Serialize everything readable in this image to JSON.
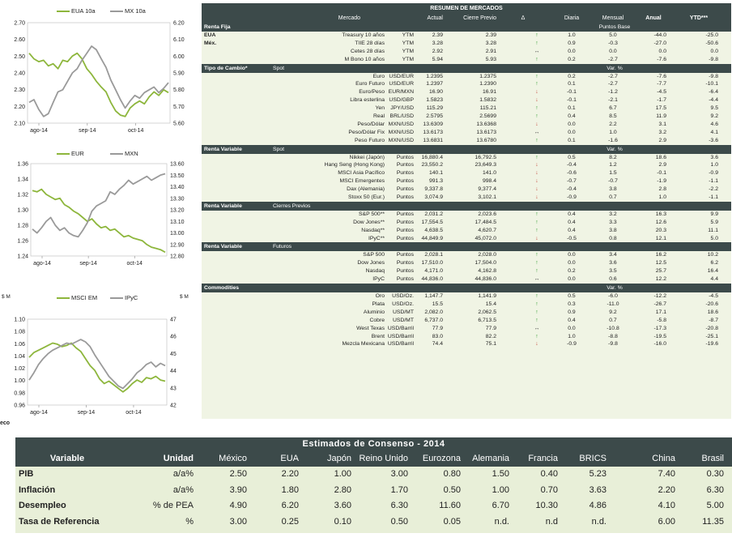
{
  "charts": [
    {
      "legend": [
        "EUA 10a",
        "MX 10a"
      ],
      "left_ticks": [
        "2.70",
        "2.60",
        "2.50",
        "2.40",
        "2.30",
        "2.20",
        "2.10"
      ],
      "right_ticks": [
        "6.20",
        "6.10",
        "6.00",
        "5.90",
        "5.80",
        "5.70",
        "5.60"
      ],
      "x_ticks": [
        "ago-14",
        "sep-14",
        "oct-14"
      ],
      "colors": {
        "series1": "#8db63c",
        "series2": "#9a9a9a"
      }
    },
    {
      "legend": [
        "EUR",
        "MXN"
      ],
      "left_ticks": [
        "1.36",
        "1.34",
        "1.32",
        "1.30",
        "1.28",
        "1.26",
        "1.24"
      ],
      "right_ticks": [
        "13.60",
        "13.50",
        "13.40",
        "13.30",
        "13.20",
        "13.10",
        "13.00",
        "12.90",
        "12.80"
      ],
      "x_ticks": [
        "ago-14",
        "sep-14",
        "oct-14"
      ],
      "colors": {
        "series1": "#8db63c",
        "series2": "#9a9a9a"
      }
    },
    {
      "legend": [
        "MSCI EM",
        "IPyC"
      ],
      "left_unit": "$ M",
      "right_unit": "$ M",
      "left_ticks": [
        "1.10",
        "1.08",
        "1.06",
        "1.04",
        "1.02",
        "1.00",
        "0.98",
        "0.96"
      ],
      "right_ticks": [
        "47",
        "46",
        "45",
        "44",
        "43",
        "42"
      ],
      "x_ticks": [
        "ago-14",
        "sep-14",
        "oct-14"
      ],
      "colors": {
        "series1": "#8db63c",
        "series2": "#9a9a9a"
      }
    }
  ],
  "eco_label": "eco",
  "market": {
    "title": "RESUMEN DE MERCADOS",
    "headers": {
      "mercado": "Mercado",
      "actual": "Actual",
      "cierre": "Cierre Previo",
      "delta": "Δ",
      "diaria": "Diaria",
      "mensual": "Mensual",
      "anual": "Anual",
      "ytd": "YTD***"
    },
    "sections": [
      {
        "label": "Renta Fija",
        "sub": "",
        "unit": "Puntos Base",
        "rows": [
          {
            "region": "EUA",
            "name": "Treasury 10 años",
            "type": "YTM",
            "actual": "2.39",
            "prev": "2.39",
            "dir": "up",
            "d": "1.0",
            "m": "5.0",
            "a": "-44.0",
            "y": "-25.0"
          },
          {
            "region": "Méx.",
            "name": "TIIE 28 días",
            "type": "YTM",
            "actual": "3.28",
            "prev": "3.28",
            "dir": "up",
            "d": "0.9",
            "m": "-0.3",
            "a": "-27.0",
            "y": "-50.6"
          },
          {
            "region": "",
            "name": "Cetes 28 días",
            "type": "YTM",
            "actual": "2.92",
            "prev": "2.91",
            "dir": "eq",
            "d": "0.0",
            "m": "0.0",
            "a": "0.0",
            "y": "0.0"
          },
          {
            "region": "",
            "name": "M Bono 10 años",
            "type": "YTM",
            "actual": "5.94",
            "prev": "5.93",
            "dir": "up",
            "d": "0.2",
            "m": "-2.7",
            "a": "-7.6",
            "y": "-9.8"
          }
        ]
      },
      {
        "label": "Tipo de Cambio*",
        "sub": "Spot",
        "unit": "Var. %",
        "rows": [
          {
            "region": "",
            "name": "Euro",
            "type": "USD/EUR",
            "actual": "1.2395",
            "prev": "1.2375",
            "dir": "up",
            "d": "0.2",
            "m": "-2.7",
            "a": "-7.6",
            "y": "-9.8"
          },
          {
            "region": "",
            "name": "Euro Futuro",
            "type": "USD/EUR",
            "actual": "1.2397",
            "prev": "1.2390",
            "dir": "up",
            "d": "0.1",
            "m": "-2.7",
            "a": "-7.7",
            "y": "-10.1"
          },
          {
            "region": "",
            "name": "Euro/Peso",
            "type": "EUR/MXN",
            "actual": "16.90",
            "prev": "16.91",
            "dir": "down",
            "d": "-0.1",
            "m": "-1.2",
            "a": "-4.5",
            "y": "-6.4"
          },
          {
            "region": "",
            "name": "Libra esterlina",
            "type": "USD/GBP",
            "actual": "1.5823",
            "prev": "1.5832",
            "dir": "down",
            "d": "-0.1",
            "m": "-2.1",
            "a": "-1.7",
            "y": "-4.4"
          },
          {
            "region": "",
            "name": "Yen",
            "type": "JPY/USD",
            "actual": "115.29",
            "prev": "115.21",
            "dir": "up",
            "d": "0.1",
            "m": "6.7",
            "a": "17.5",
            "y": "9.5"
          },
          {
            "region": "",
            "name": "Real",
            "type": "BRL/USD",
            "actual": "2.5795",
            "prev": "2.5699",
            "dir": "up",
            "d": "0.4",
            "m": "8.5",
            "a": "11.9",
            "y": "9.2"
          },
          {
            "region": "",
            "name": "Peso/Dólar",
            "type": "MXN/USD",
            "actual": "13.6309",
            "prev": "13.6368",
            "dir": "down",
            "d": "0.0",
            "m": "2.2",
            "a": "3.1",
            "y": "4.6"
          },
          {
            "region": "",
            "name": "Peso/Dólar Fix",
            "type": "MXN/USD",
            "actual": "13.6173",
            "prev": "13.6173",
            "dir": "eq",
            "d": "0.0",
            "m": "1.0",
            "a": "3.2",
            "y": "4.1"
          },
          {
            "region": "",
            "name": "Peso Futuro",
            "type": "MXN/USD",
            "actual": "13.6831",
            "prev": "13.6780",
            "dir": "up",
            "d": "0.1",
            "m": "-1.6",
            "a": "2.9",
            "y": "-3.6"
          }
        ]
      },
      {
        "label": "Renta Variable",
        "sub": "Spot",
        "unit": "Var. %",
        "rows": [
          {
            "region": "",
            "name": "Nikkei (Japón)",
            "type": "Puntos",
            "actual": "16,880.4",
            "prev": "16,792.5",
            "dir": "up",
            "d": "0.5",
            "m": "8.2",
            "a": "18.6",
            "y": "3.6"
          },
          {
            "region": "",
            "name": "Hang Seng (Hong Kong)",
            "type": "Puntos",
            "actual": "23,550.2",
            "prev": "23,649.3",
            "dir": "down",
            "d": "-0.4",
            "m": "1.2",
            "a": "2.9",
            "y": "1.0"
          },
          {
            "region": "",
            "name": "MSCI Asia Pacífico",
            "type": "Puntos",
            "actual": "140.1",
            "prev": "141.0",
            "dir": "down",
            "d": "-0.6",
            "m": "1.5",
            "a": "-0.1",
            "y": "-0.9"
          },
          {
            "region": "",
            "name": "MSCI Emergentes",
            "type": "Puntos",
            "actual": "991.3",
            "prev": "998.4",
            "dir": "down",
            "d": "-0.7",
            "m": "-0.7",
            "a": "-1.9",
            "y": "-1.1"
          },
          {
            "region": "",
            "name": "Dax (Alemania)",
            "type": "Puntos",
            "actual": "9,337.8",
            "prev": "9,377.4",
            "dir": "down",
            "d": "-0.4",
            "m": "3.8",
            "a": "2.8",
            "y": "-2.2"
          },
          {
            "region": "",
            "name": "Stoxx 50 (Eur.)",
            "type": "Puntos",
            "actual": "3,074.9",
            "prev": "3,102.1",
            "dir": "down",
            "d": "-0.9",
            "m": "0.7",
            "a": "1.0",
            "y": "-1.1"
          }
        ]
      },
      {
        "label": "Renta Variable",
        "sub": "Cierres Previos",
        "unit": "",
        "rows": [
          {
            "region": "",
            "name": "S&P 500**",
            "type": "Puntos",
            "actual": "2,031.2",
            "prev": "2,023.6",
            "dir": "up",
            "d": "0.4",
            "m": "3.2",
            "a": "16.3",
            "y": "9.9"
          },
          {
            "region": "",
            "name": "Dow Jones**",
            "type": "Puntos",
            "actual": "17,554.5",
            "prev": "17,484.5",
            "dir": "up",
            "d": "0.4",
            "m": "3.3",
            "a": "12.6",
            "y": "5.9"
          },
          {
            "region": "",
            "name": "Nasdaq**",
            "type": "Puntos",
            "actual": "4,638.5",
            "prev": "4,620.7",
            "dir": "up",
            "d": "0.4",
            "m": "3.8",
            "a": "20.3",
            "y": "11.1"
          },
          {
            "region": "",
            "name": "IPyC**",
            "type": "Puntos",
            "actual": "44,849.9",
            "prev": "45,072.0",
            "dir": "down",
            "d": "-0.5",
            "m": "0.8",
            "a": "12.1",
            "y": "5.0"
          }
        ]
      },
      {
        "label": "Renta Variable",
        "sub": "Futuros",
        "unit": "",
        "rows": [
          {
            "region": "",
            "name": "S&P 500",
            "type": "Puntos",
            "actual": "2,028.1",
            "prev": "2,028.0",
            "dir": "up",
            "d": "0.0",
            "m": "3.4",
            "a": "16.2",
            "y": "10.2"
          },
          {
            "region": "",
            "name": "Dow Jones",
            "type": "Puntos",
            "actual": "17,510.0",
            "prev": "17,504.0",
            "dir": "up",
            "d": "0.0",
            "m": "3.6",
            "a": "12.5",
            "y": "6.2"
          },
          {
            "region": "",
            "name": "Nasdaq",
            "type": "Puntos",
            "actual": "4,171.0",
            "prev": "4,162.8",
            "dir": "up",
            "d": "0.2",
            "m": "3.5",
            "a": "25.7",
            "y": "16.4"
          },
          {
            "region": "",
            "name": "IPyC",
            "type": "Puntos",
            "actual": "44,836.0",
            "prev": "44,836.0",
            "dir": "eq",
            "d": "0.0",
            "m": "0.6",
            "a": "12.2",
            "y": "4.4"
          }
        ]
      },
      {
        "label": "Commodities",
        "sub": "",
        "unit": "Var. %",
        "rows": [
          {
            "region": "",
            "name": "Oro",
            "type": "USD/Oz.",
            "actual": "1,147.7",
            "prev": "1,141.9",
            "dir": "up",
            "d": "0.5",
            "m": "-6.0",
            "a": "-12.2",
            "y": "-4.5"
          },
          {
            "region": "",
            "name": "Plata",
            "type": "USD/Oz.",
            "actual": "15.5",
            "prev": "15.4",
            "dir": "up",
            "d": "0.3",
            "m": "-11.0",
            "a": "-26.7",
            "y": "-20.6"
          },
          {
            "region": "",
            "name": "Aluminio",
            "type": "USD/MT",
            "actual": "2,082.0",
            "prev": "2,062.5",
            "dir": "up",
            "d": "0.9",
            "m": "9.2",
            "a": "17.1",
            "y": "18.6"
          },
          {
            "region": "",
            "name": "Cobre",
            "type": "USD/MT",
            "actual": "6,737.0",
            "prev": "6,713.5",
            "dir": "up",
            "d": "0.4",
            "m": "0.7",
            "a": "-5.8",
            "y": "-8.7"
          },
          {
            "region": "",
            "name": "West Texas",
            "type": "USD/Barril",
            "actual": "77.9",
            "prev": "77.9",
            "dir": "eq",
            "d": "0.0",
            "m": "-10.8",
            "a": "-17.3",
            "y": "-20.8"
          },
          {
            "region": "",
            "name": "Brent",
            "type": "USD/Barril",
            "actual": "83.0",
            "prev": "82.2",
            "dir": "up",
            "d": "1.0",
            "m": "-8.8",
            "a": "-19.5",
            "y": "-25.1"
          },
          {
            "region": "",
            "name": "Mezcla Mexicana",
            "type": "USD/Barril",
            "actual": "74.4",
            "prev": "75.1",
            "dir": "down",
            "d": "-0.9",
            "m": "-9.8",
            "a": "-16.0",
            "y": "-19.6"
          }
        ]
      }
    ]
  },
  "consensus": {
    "title": "Estimados de Consenso - 2014",
    "headers": [
      "Variable",
      "Unidad",
      "México",
      "EUA",
      "Japón",
      "Reino Unido",
      "Eurozona",
      "Alemania",
      "Francia",
      "BRICS",
      "China",
      "Brasil"
    ],
    "rows": [
      [
        "PIB",
        "a/a%",
        "2.50",
        "2.20",
        "1.00",
        "3.00",
        "0.80",
        "1.50",
        "0.40",
        "5.23",
        "7.40",
        "0.30"
      ],
      [
        "Inflación",
        "a/a%",
        "3.90",
        "1.80",
        "2.80",
        "1.70",
        "0.50",
        "1.00",
        "0.70",
        "3.63",
        "2.20",
        "6.30"
      ],
      [
        "Desempleo",
        "% de PEA",
        "4.90",
        "6.20",
        "3.60",
        "6.30",
        "11.60",
        "6.70",
        "10.30",
        "4.86",
        "4.10",
        "5.00"
      ],
      [
        "Tasa de Referencia",
        "%",
        "3.00",
        "0.25",
        "0.10",
        "0.50",
        "0.05",
        "n.d.",
        "n.d",
        "n.d.",
        "6.00",
        "11.35"
      ]
    ]
  }
}
